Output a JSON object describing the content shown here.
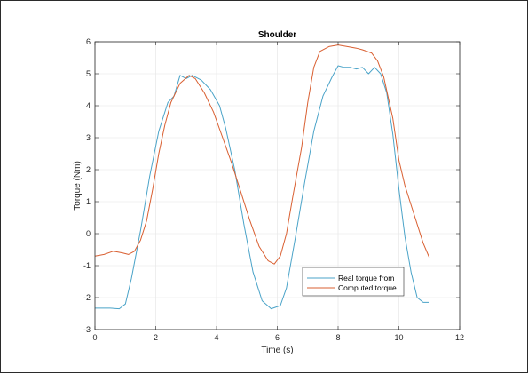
{
  "chart_data": {
    "type": "line",
    "title": "Shoulder",
    "xlabel": "Time (s)",
    "ylabel": "Torque (Nm)",
    "xlim": [
      0,
      12
    ],
    "ylim": [
      -3,
      6
    ],
    "xticks": [
      0,
      2,
      4,
      6,
      8,
      10,
      12
    ],
    "yticks": [
      -3,
      -2,
      -1,
      0,
      1,
      2,
      3,
      4,
      5,
      6
    ],
    "grid": true,
    "legend_position": "bottom-right",
    "series": [
      {
        "name": "Real torque from",
        "color": "#4aa3c8",
        "points": [
          [
            0,
            -2.33
          ],
          [
            0.5,
            -2.33
          ],
          [
            0.8,
            -2.35
          ],
          [
            1.0,
            -2.2
          ],
          [
            1.2,
            -1.4
          ],
          [
            1.5,
            0.1
          ],
          [
            1.8,
            1.8
          ],
          [
            2.1,
            3.2
          ],
          [
            2.4,
            4.1
          ],
          [
            2.6,
            4.3
          ],
          [
            2.8,
            4.95
          ],
          [
            3.0,
            4.85
          ],
          [
            3.2,
            4.95
          ],
          [
            3.5,
            4.8
          ],
          [
            3.8,
            4.5
          ],
          [
            4.1,
            4.0
          ],
          [
            4.3,
            3.3
          ],
          [
            4.6,
            2.0
          ],
          [
            4.9,
            0.3
          ],
          [
            5.2,
            -1.2
          ],
          [
            5.5,
            -2.1
          ],
          [
            5.8,
            -2.35
          ],
          [
            6.1,
            -2.25
          ],
          [
            6.3,
            -1.7
          ],
          [
            6.6,
            -0.1
          ],
          [
            6.9,
            1.6
          ],
          [
            7.2,
            3.2
          ],
          [
            7.5,
            4.3
          ],
          [
            7.8,
            4.9
          ],
          [
            8.0,
            5.25
          ],
          [
            8.2,
            5.2
          ],
          [
            8.4,
            5.2
          ],
          [
            8.6,
            5.15
          ],
          [
            8.8,
            5.2
          ],
          [
            9.0,
            5.0
          ],
          [
            9.2,
            5.2
          ],
          [
            9.4,
            5.0
          ],
          [
            9.6,
            4.4
          ],
          [
            9.8,
            3.1
          ],
          [
            10.0,
            1.4
          ],
          [
            10.2,
            -0.1
          ],
          [
            10.4,
            -1.2
          ],
          [
            10.6,
            -2.0
          ],
          [
            10.8,
            -2.15
          ],
          [
            11.0,
            -2.15
          ]
        ]
      },
      {
        "name": "Computed torque",
        "color": "#d95f31",
        "points": [
          [
            0,
            -0.7
          ],
          [
            0.3,
            -0.65
          ],
          [
            0.6,
            -0.55
          ],
          [
            0.9,
            -0.6
          ],
          [
            1.1,
            -0.65
          ],
          [
            1.3,
            -0.55
          ],
          [
            1.5,
            -0.2
          ],
          [
            1.7,
            0.4
          ],
          [
            1.9,
            1.4
          ],
          [
            2.1,
            2.5
          ],
          [
            2.3,
            3.4
          ],
          [
            2.5,
            4.1
          ],
          [
            2.8,
            4.7
          ],
          [
            3.1,
            4.95
          ],
          [
            3.3,
            4.85
          ],
          [
            3.6,
            4.4
          ],
          [
            3.9,
            3.8
          ],
          [
            4.2,
            3.0
          ],
          [
            4.5,
            2.2
          ],
          [
            4.8,
            1.3
          ],
          [
            5.1,
            0.4
          ],
          [
            5.4,
            -0.4
          ],
          [
            5.7,
            -0.85
          ],
          [
            5.9,
            -0.95
          ],
          [
            6.1,
            -0.7
          ],
          [
            6.3,
            0.0
          ],
          [
            6.5,
            1.1
          ],
          [
            6.8,
            2.7
          ],
          [
            7.0,
            4.1
          ],
          [
            7.2,
            5.2
          ],
          [
            7.4,
            5.7
          ],
          [
            7.7,
            5.85
          ],
          [
            8.0,
            5.9
          ],
          [
            8.3,
            5.85
          ],
          [
            8.6,
            5.8
          ],
          [
            8.8,
            5.75
          ],
          [
            9.1,
            5.65
          ],
          [
            9.3,
            5.4
          ],
          [
            9.5,
            4.9
          ],
          [
            9.8,
            3.6
          ],
          [
            10.0,
            2.3
          ],
          [
            10.2,
            1.5
          ],
          [
            10.5,
            0.6
          ],
          [
            10.8,
            -0.3
          ],
          [
            11.0,
            -0.75
          ]
        ]
      }
    ]
  }
}
